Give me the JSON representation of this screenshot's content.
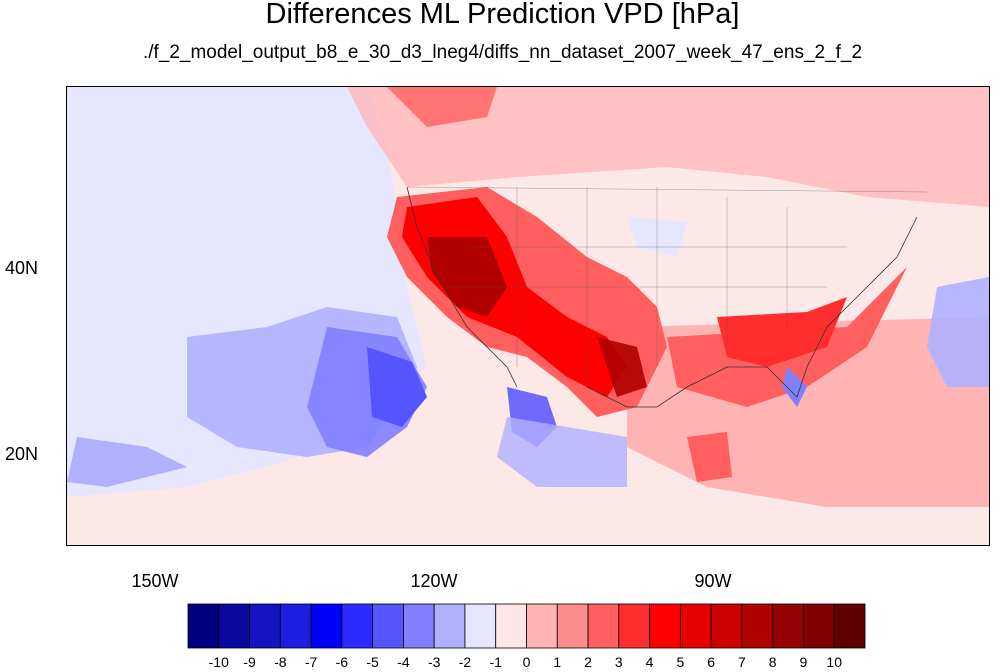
{
  "title": "Differences ML Prediction VPD [hPa]",
  "subtitle": "./f_2_model_output_b8_e_30_d3_lneg4/diffs_nn_dataset_2007_week_47_ens_2_f_2",
  "map": {
    "lat_labels": [
      "40N",
      "20N"
    ],
    "lon_labels": [
      "150W",
      "120W",
      "90W"
    ],
    "background_color": "#fde8e8"
  },
  "colorbar": {
    "colors": [
      "#000080",
      "#0a0aa0",
      "#1414c0",
      "#1e1ee0",
      "#0000ff",
      "#2b2bff",
      "#5555ff",
      "#8080ff",
      "#b0b0ff",
      "#e6e6ff",
      "#ffe6e6",
      "#ffb4b4",
      "#ff8c8c",
      "#ff5f5f",
      "#ff2d2d",
      "#ff0000",
      "#e60000",
      "#cc0000",
      "#b00000",
      "#960000",
      "#800000",
      "#600000"
    ],
    "labels": [
      "-10",
      "-9",
      "-8",
      "-7",
      "-6",
      "-5",
      "-4",
      "-3",
      "-2",
      "-1",
      "0",
      "1",
      "2",
      "3",
      "4",
      "5",
      "6",
      "7",
      "8",
      "9",
      "10"
    ]
  }
}
